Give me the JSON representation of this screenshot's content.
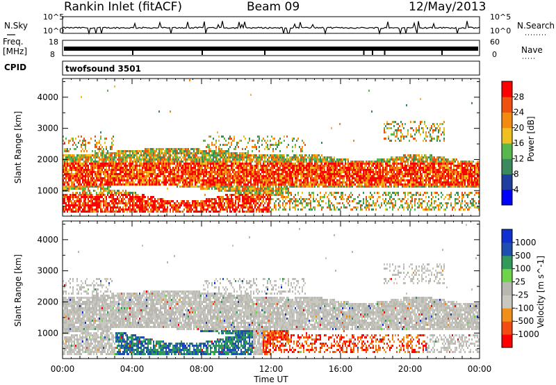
{
  "header": {
    "station": "Rankin Inlet (fitACF)",
    "beam": "Beam 09",
    "date": "12/May/2013"
  },
  "side_labels": {
    "nsky": "N.Sky",
    "freq_line1": "Freq.",
    "freq_line2": "[MHz]",
    "cpid": "CPID",
    "nsearch": "N.Search",
    "nave": "Nave"
  },
  "cpid_value": "twofsound 3501",
  "noise_panel": {
    "left_ticks": [
      "10^5",
      "10^0"
    ],
    "right_ticks": [
      "10^5",
      "10^0"
    ]
  },
  "freq_panel": {
    "left_ticks": [
      "18",
      "8"
    ],
    "right_ticks": [
      "60",
      "0"
    ]
  },
  "colors": {
    "power_scale": [
      "#0000ff",
      "#1e3fa0",
      "#3b8a5e",
      "#57b84e",
      "#f0c020",
      "#f58a10",
      "#f05010",
      "#ff0000"
    ],
    "velocity_scale": [
      "#ff0000",
      "#f24c12",
      "#f0901a",
      "#c8c8c0",
      "#b8b8b0",
      "#6ed44a",
      "#2f9a5a",
      "#1e4fb0",
      "#1030d0"
    ]
  },
  "chart_data": [
    {
      "type": "heatmap",
      "title": "",
      "xlabel": "",
      "ylabel": "Slant Range [km]",
      "x_ticks": [
        "00:00",
        "04:00",
        "08:00",
        "12:00",
        "16:00",
        "20:00",
        "00:00"
      ],
      "y_ticks": [
        1000,
        2000,
        3000,
        4000
      ],
      "xlim": [
        0,
        24
      ],
      "ylim": [
        180,
        4600
      ],
      "colorbar_label": "Power [dB]",
      "colorbar_ticks": [
        4,
        8,
        12,
        16,
        20,
        24,
        28
      ],
      "colorbar_range": [
        0,
        32
      ]
    },
    {
      "type": "heatmap",
      "title": "",
      "xlabel": "Time UT",
      "ylabel": "Slant Range [km]",
      "x_ticks": [
        "00:00",
        "04:00",
        "08:00",
        "12:00",
        "16:00",
        "20:00",
        "00:00"
      ],
      "y_ticks": [
        1000,
        2000,
        3000,
        4000
      ],
      "xlim": [
        0,
        24
      ],
      "ylim": [
        180,
        4600
      ],
      "colorbar_label": "Velocity [m s^-1]",
      "colorbar_ticks": [
        "1000",
        "500",
        "100",
        "25",
        "-25",
        "-100",
        "-500",
        "-1000"
      ]
    }
  ]
}
